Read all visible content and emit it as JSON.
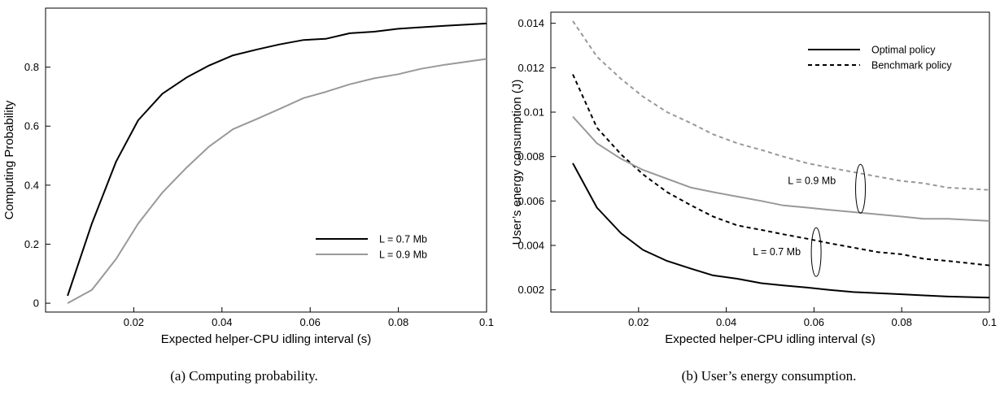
{
  "chart_data": [
    {
      "type": "line",
      "caption": "(a) Computing probability.",
      "xlabel": "Expected helper-CPU idling interval (s)",
      "ylabel": "Computing Probability",
      "xlim": [
        0,
        0.1
      ],
      "ylim": [
        -0.03,
        1.0
      ],
      "xticks": [
        0.02,
        0.04,
        0.06,
        0.08,
        0.1
      ],
      "xtick_labels": [
        "0.02",
        "0.04",
        "0.06",
        "0.08",
        "0.1"
      ],
      "yticks": [
        0,
        0.2,
        0.4,
        0.6,
        0.8
      ],
      "ytick_labels": [
        "0",
        "0.2",
        "0.4",
        "0.6",
        "0.8"
      ],
      "legend_position": "bottom-right",
      "series": [
        {
          "name": "L = 0.7 Mb",
          "color": "#000000",
          "dash": "",
          "x": [
            0.005,
            0.0105,
            0.016,
            0.021,
            0.0265,
            0.032,
            0.037,
            0.0425,
            0.048,
            0.053,
            0.0585,
            0.0635,
            0.069,
            0.0745,
            0.08,
            0.085,
            0.0905,
            0.1
          ],
          "y": [
            0.025,
            0.27,
            0.48,
            0.62,
            0.71,
            0.765,
            0.805,
            0.84,
            0.86,
            0.877,
            0.892,
            0.896,
            0.915,
            0.92,
            0.93,
            0.935,
            0.94,
            0.948
          ]
        },
        {
          "name": "L = 0.9 Mb",
          "color": "#999999",
          "dash": "",
          "x": [
            0.005,
            0.0105,
            0.016,
            0.021,
            0.0265,
            0.032,
            0.037,
            0.0425,
            0.048,
            0.053,
            0.0585,
            0.0635,
            0.069,
            0.0745,
            0.08,
            0.085,
            0.0905,
            0.1
          ],
          "y": [
            0.0,
            0.045,
            0.15,
            0.27,
            0.375,
            0.46,
            0.53,
            0.59,
            0.625,
            0.658,
            0.695,
            0.716,
            0.742,
            0.762,
            0.776,
            0.794,
            0.808,
            0.828
          ]
        }
      ],
      "annotations": []
    },
    {
      "type": "line",
      "caption": "(b) User’s energy consumption.",
      "xlabel": "Expected helper-CPU idling interval (s)",
      "ylabel": "User’s energy consumption (J)",
      "xlim": [
        0,
        0.1
      ],
      "ylim": [
        0.001,
        0.0145
      ],
      "xticks": [
        0.02,
        0.04,
        0.06,
        0.08,
        0.1
      ],
      "xtick_labels": [
        "0.02",
        "0.04",
        "0.06",
        "0.08",
        "0.1"
      ],
      "yticks": [
        0.002,
        0.004,
        0.006,
        0.008,
        0.01,
        0.012,
        0.014
      ],
      "ytick_labels": [
        "0.002",
        "0.004",
        "0.006",
        "0.008",
        "0.01",
        "0.012",
        "0.014"
      ],
      "legend_position": "top-right",
      "legend_entries": [
        {
          "name": "Optimal policy",
          "dash": ""
        },
        {
          "name": "Benchmark policy",
          "dash": "5,4"
        }
      ],
      "series": [
        {
          "name": "",
          "color": "#000000",
          "dash": "",
          "x": [
            0.005,
            0.0105,
            0.016,
            0.021,
            0.0265,
            0.032,
            0.037,
            0.0425,
            0.048,
            0.053,
            0.0585,
            0.0635,
            0.069,
            0.0745,
            0.08,
            0.085,
            0.0905,
            0.1
          ],
          "y": [
            0.0077,
            0.0057,
            0.00455,
            0.0038,
            0.0033,
            0.00295,
            0.00265,
            0.0025,
            0.0023,
            0.0022,
            0.0021,
            0.002,
            0.0019,
            0.00185,
            0.0018,
            0.00175,
            0.0017,
            0.00165
          ]
        },
        {
          "name": "",
          "color": "#000000",
          "dash": "5,4",
          "x": [
            0.005,
            0.0105,
            0.016,
            0.021,
            0.0265,
            0.032,
            0.037,
            0.0425,
            0.048,
            0.053,
            0.0585,
            0.0635,
            0.069,
            0.0745,
            0.08,
            0.085,
            0.0905,
            0.1
          ],
          "y": [
            0.0117,
            0.0093,
            0.0081,
            0.0072,
            0.0064,
            0.0058,
            0.0053,
            0.0049,
            0.0047,
            0.0045,
            0.0043,
            0.0041,
            0.0039,
            0.0037,
            0.0036,
            0.0034,
            0.0033,
            0.0031
          ]
        },
        {
          "name": "",
          "color": "#999999",
          "dash": "",
          "x": [
            0.005,
            0.0105,
            0.016,
            0.021,
            0.0265,
            0.032,
            0.037,
            0.0425,
            0.048,
            0.053,
            0.0585,
            0.0635,
            0.069,
            0.0745,
            0.08,
            0.085,
            0.0905,
            0.1
          ],
          "y": [
            0.0098,
            0.0086,
            0.0079,
            0.0074,
            0.007,
            0.0066,
            0.0064,
            0.0062,
            0.006,
            0.0058,
            0.0057,
            0.0056,
            0.0055,
            0.0054,
            0.0053,
            0.0052,
            0.0052,
            0.0051
          ]
        },
        {
          "name": "",
          "color": "#999999",
          "dash": "5,4",
          "x": [
            0.005,
            0.0105,
            0.016,
            0.021,
            0.0265,
            0.032,
            0.037,
            0.0425,
            0.048,
            0.053,
            0.0585,
            0.0635,
            0.069,
            0.0745,
            0.08,
            0.085,
            0.0905,
            0.1
          ],
          "y": [
            0.0141,
            0.0125,
            0.0115,
            0.0107,
            0.01,
            0.0095,
            0.009,
            0.0086,
            0.0083,
            0.008,
            0.0077,
            0.0075,
            0.0073,
            0.0071,
            0.0069,
            0.0068,
            0.0066,
            0.0065
          ]
        }
      ],
      "annotations": [
        {
          "text": "L = 0.9 Mb",
          "x": 0.0595,
          "y": 0.0069,
          "ellipse_x": 0.0706,
          "ellipse_y": 0.00655
        },
        {
          "text": "L = 0.7 Mb",
          "x": 0.0515,
          "y": 0.0037,
          "ellipse_x": 0.0605,
          "ellipse_y": 0.0037
        }
      ]
    }
  ]
}
